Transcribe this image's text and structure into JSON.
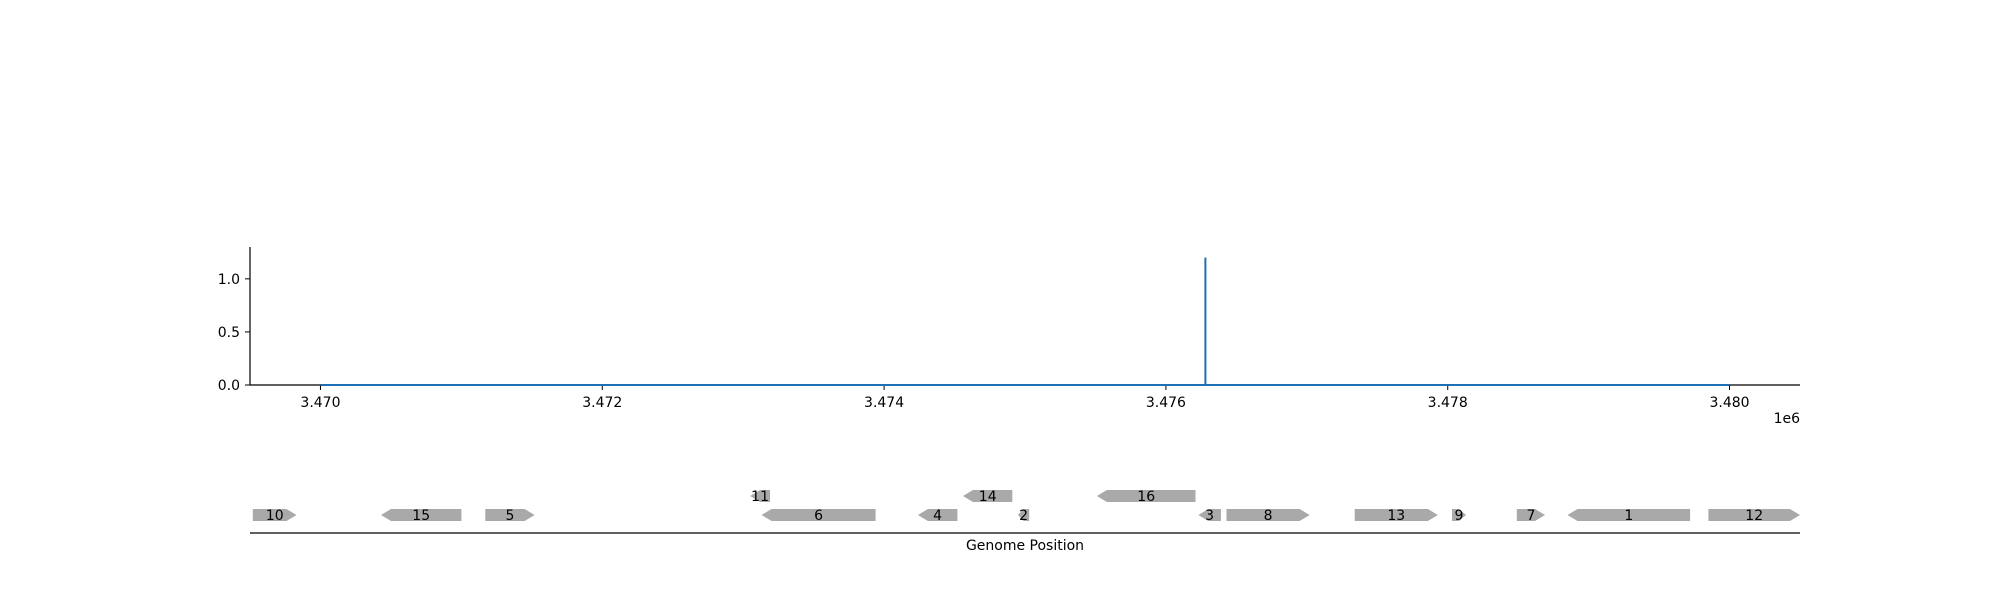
{
  "chart_data": [
    {
      "type": "line",
      "title": "",
      "xlabel": "",
      "ylabel": "",
      "x_offset_label": "1e6",
      "xlim": [
        3.4695,
        3.4805
      ],
      "ylim": [
        0,
        1.3
      ],
      "x_ticks": [
        3.47,
        3.472,
        3.474,
        3.476,
        3.478,
        3.48
      ],
      "x_tick_labels": [
        "3.470",
        "3.472",
        "3.474",
        "3.476",
        "3.478",
        "3.480"
      ],
      "y_ticks": [
        0.0,
        0.5,
        1.0
      ],
      "y_tick_labels": [
        "0.0",
        "0.5",
        "1.0"
      ],
      "grid": false,
      "series": [
        {
          "color": "#1f6fb4",
          "x": [
            3.47,
            3.47628,
            3.47628,
            3.47628,
            3.47628,
            3.48
          ],
          "y": [
            0,
            0,
            0,
            1.2,
            0,
            0
          ]
        }
      ]
    },
    {
      "type": "genome_track",
      "xlabel": "Genome Position",
      "xlim": [
        3.4695,
        3.4805
      ],
      "feature_color": "#a9a9a9",
      "features": [
        {
          "label": "10",
          "start": 3.46952,
          "end": 3.46983,
          "strand": "+",
          "row": 0
        },
        {
          "label": "15",
          "start": 3.47043,
          "end": 3.471,
          "strand": "-",
          "row": 0
        },
        {
          "label": "5",
          "start": 3.47117,
          "end": 3.47152,
          "strand": "+",
          "row": 0
        },
        {
          "label": "11",
          "start": 3.47305,
          "end": 3.47319,
          "strand": "-",
          "row": 1
        },
        {
          "label": "6",
          "start": 3.47313,
          "end": 3.47394,
          "strand": "-",
          "row": 0
        },
        {
          "label": "4",
          "start": 3.47424,
          "end": 3.47452,
          "strand": "-",
          "row": 0
        },
        {
          "label": "14",
          "start": 3.47456,
          "end": 3.47491,
          "strand": "-",
          "row": 1
        },
        {
          "label": "2",
          "start": 3.47495,
          "end": 3.47503,
          "strand": "-",
          "row": 0
        },
        {
          "label": "16",
          "start": 3.47551,
          "end": 3.47621,
          "strand": "-",
          "row": 1
        },
        {
          "label": "3",
          "start": 3.47623,
          "end": 3.47639,
          "strand": "-",
          "row": 0
        },
        {
          "label": "8",
          "start": 3.47643,
          "end": 3.47702,
          "strand": "+",
          "row": 0
        },
        {
          "label": "13",
          "start": 3.47734,
          "end": 3.47793,
          "strand": "+",
          "row": 0
        },
        {
          "label": "9",
          "start": 3.47803,
          "end": 3.47813,
          "strand": "+",
          "row": 0
        },
        {
          "label": "7",
          "start": 3.47849,
          "end": 3.47869,
          "strand": "+",
          "row": 0
        },
        {
          "label": "1",
          "start": 3.47885,
          "end": 3.47972,
          "strand": "-",
          "row": 0
        },
        {
          "label": "12",
          "start": 3.47985,
          "end": 3.4805,
          "strand": "+",
          "row": 0
        }
      ]
    }
  ]
}
